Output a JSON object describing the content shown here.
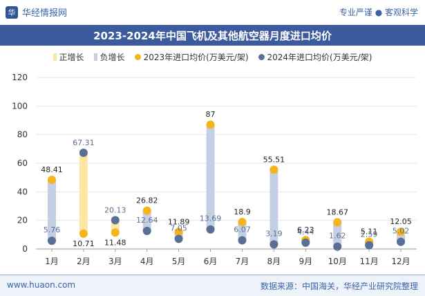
{
  "header": {
    "brand": "华经情报网",
    "tagline": "专业严谨 ● 客观科学"
  },
  "footer": {
    "website": "www.huaon.com",
    "source": "数据来源：中国海关，华经产业研究院整理"
  },
  "colors": {
    "title_bg": "#3b5b9e",
    "increase_bar": "#fbe7a3",
    "decrease_bar": "#c5cfe3",
    "series_2023": "#f5b41a",
    "series_2024": "#5a6f96"
  },
  "chart_data": {
    "type": "dumbbell",
    "title": "2023-2024年中国飞机及其他航空器月度进口均价",
    "categories": [
      "1月",
      "2月",
      "3月",
      "4月",
      "5月",
      "6月",
      "7月",
      "8月",
      "9月",
      "10月",
      "11月",
      "12月"
    ],
    "legend": {
      "increase": "正增长",
      "decrease": "负增长",
      "series_2023": "2023年进口均价(万美元/架)",
      "series_2024": "2024年进口均价(万美元/架)"
    },
    "series": [
      {
        "name": "2023年进口均价(万美元/架)",
        "values": [
          48.41,
          10.71,
          11.48,
          26.82,
          11.89,
          87,
          18.9,
          55.51,
          6.23,
          18.67,
          5.11,
          12.05
        ]
      },
      {
        "name": "2024年进口均价(万美元/架)",
        "values": [
          5.76,
          67.31,
          20.13,
          12.64,
          7.05,
          13.69,
          6.07,
          3.19,
          4.44,
          1.62,
          2.59,
          5.02
        ]
      }
    ],
    "ylim": [
      0,
      120
    ],
    "yticks": [
      0,
      20,
      40,
      60,
      80,
      100,
      120
    ],
    "xlabel": "",
    "ylabel": ""
  }
}
